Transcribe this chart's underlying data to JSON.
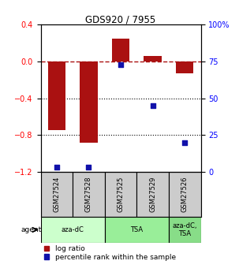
{
  "title": "GDS920 / 7955",
  "samples": [
    "GSM27524",
    "GSM27528",
    "GSM27525",
    "GSM27529",
    "GSM27526"
  ],
  "log_ratios": [
    -0.75,
    -0.88,
    0.25,
    0.06,
    -0.13
  ],
  "percentile_ranks": [
    3,
    3,
    73,
    45,
    20
  ],
  "ylim_left": [
    -1.2,
    0.4
  ],
  "ylim_right": [
    0,
    100
  ],
  "left_ticks": [
    0.4,
    0.0,
    -0.4,
    -0.8,
    -1.2
  ],
  "right_ticks": [
    100,
    75,
    50,
    25,
    0
  ],
  "bar_color": "#aa1111",
  "dot_color": "#1111aa",
  "bar_width": 0.55,
  "agent_groups": [
    {
      "label": "aza-dC",
      "span": [
        0,
        2
      ],
      "color": "#ccffcc"
    },
    {
      "label": "TSA",
      "span": [
        2,
        4
      ],
      "color": "#99ee99"
    },
    {
      "label": "aza-dC,\nTSA",
      "span": [
        4,
        5
      ],
      "color": "#88dd88"
    }
  ],
  "legend_items": [
    {
      "color": "#aa1111",
      "label": "log ratio"
    },
    {
      "color": "#1111aa",
      "label": "percentile rank within the sample"
    }
  ],
  "background_color": "#ffffff",
  "sample_box_color": "#cccccc"
}
